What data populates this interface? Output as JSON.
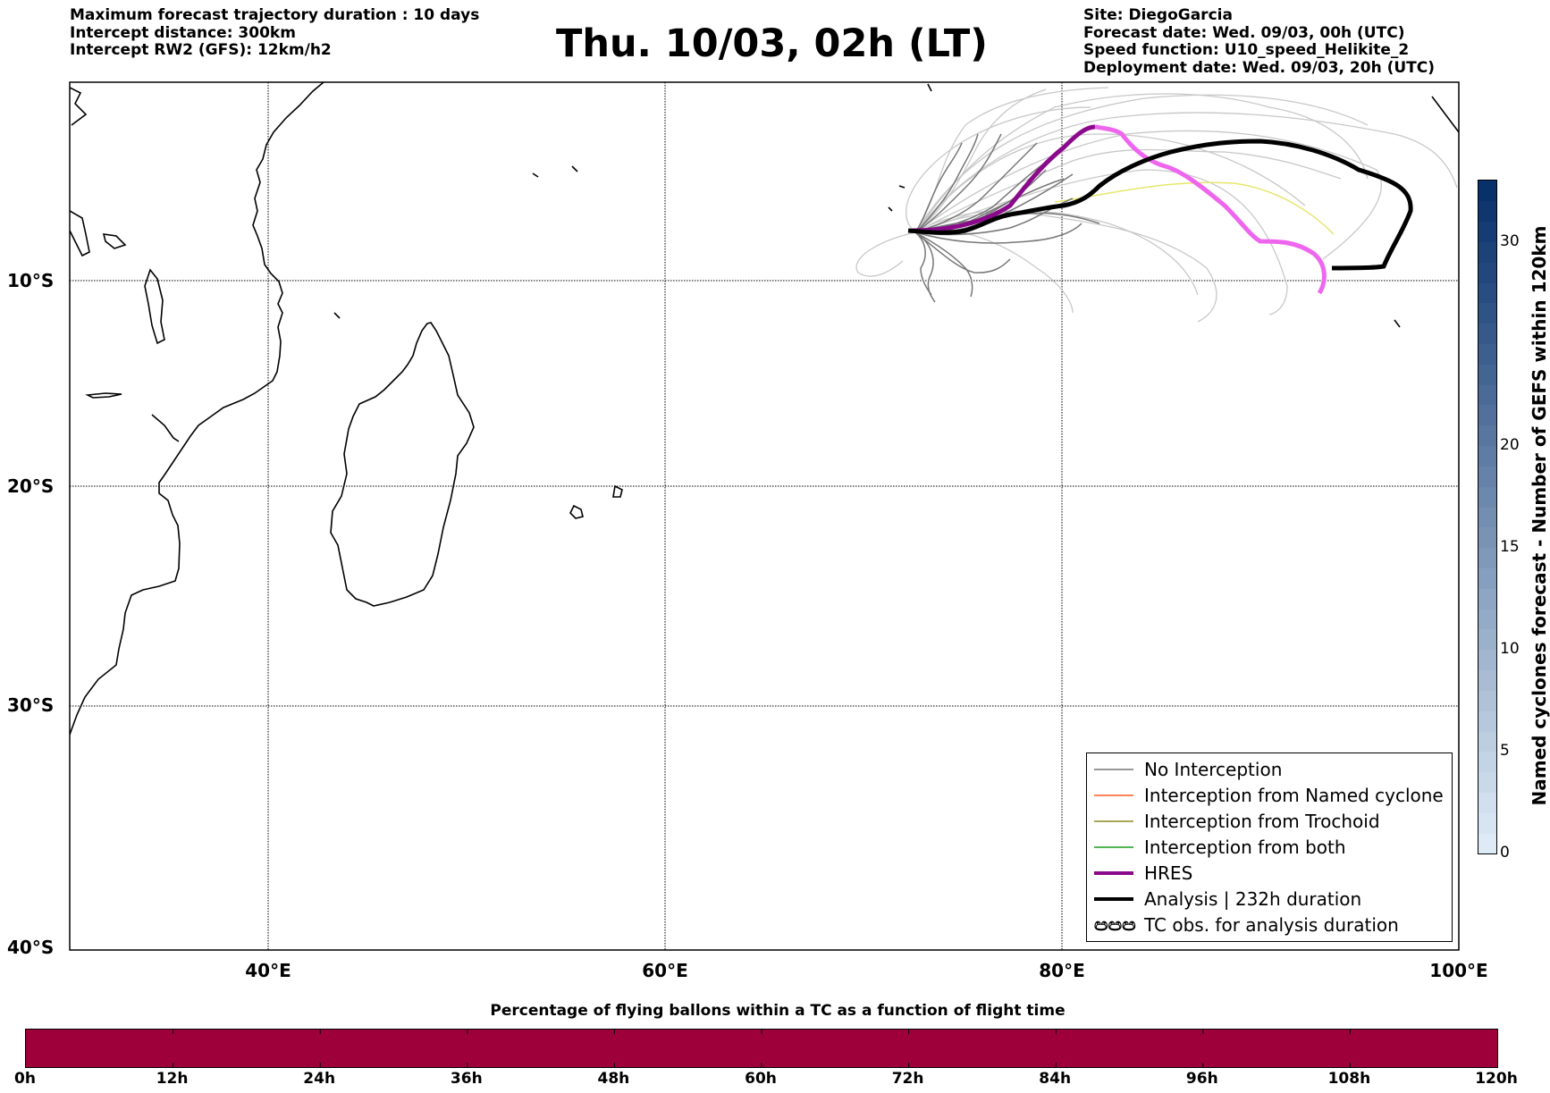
{
  "header_left": {
    "line1": "Maximum forecast trajectory duration : 10 days",
    "line2": "Intercept distance: 300km",
    "line3": "Intercept RW2 (GFS):  12km/h2"
  },
  "title": "Thu. 10/03, 02h (LT)",
  "header_right": {
    "line1": "Site: DiegoGarcia",
    "line2": "Forecast date: Wed. 09/03, 00h (UTC)",
    "line3": "Speed function: U10_speed_Helikite_2",
    "line4": "Deployment date: Wed. 09/03, 20h (UTC)"
  },
  "map": {
    "lon_range": [
      30,
      100
    ],
    "lat_range": [
      -40,
      1
    ],
    "lat_ticks": [
      "10°S",
      "20°S",
      "30°S",
      "40°S"
    ],
    "lon_ticks": [
      "40°E",
      "60°E",
      "80°E",
      "100°E"
    ],
    "grid": true,
    "colors": {
      "no_interception": "#777777",
      "named_cyclone": "#ff5a1e",
      "trochoid": "#8b8b23",
      "both": "#1a9e1a",
      "hres": "#8b0a8b",
      "hres_late": "#ee66ee",
      "analysis": "#000000",
      "faint_members": "#c8c8c8",
      "yellow_member": "#e6e66e"
    }
  },
  "legend": {
    "no_interception": "No Interception",
    "named_cyclone": "Interception from Named cyclone",
    "trochoid": "Interception from Trochoid",
    "both": "Interception from both",
    "hres": "HRES",
    "analysis": "Analysis | 232h duration",
    "tc_symbol": "ඏඏඏ",
    "tc_obs": "TC obs. for analysis duration"
  },
  "colorbar_vertical": {
    "label": "Named cyclones forecast - Number of GEFS within 120km",
    "range": [
      0,
      33
    ],
    "ticks": [
      "0",
      "5",
      "10",
      "15",
      "20",
      "30"
    ]
  },
  "colorbar_horizontal": {
    "title": "Percentage of flying ballons within a TC as a function of flight time",
    "color": "#9e003a",
    "ticks": [
      "0h",
      "12h",
      "24h",
      "36h",
      "48h",
      "60h",
      "72h",
      "84h",
      "96h",
      "108h",
      "120h"
    ]
  }
}
